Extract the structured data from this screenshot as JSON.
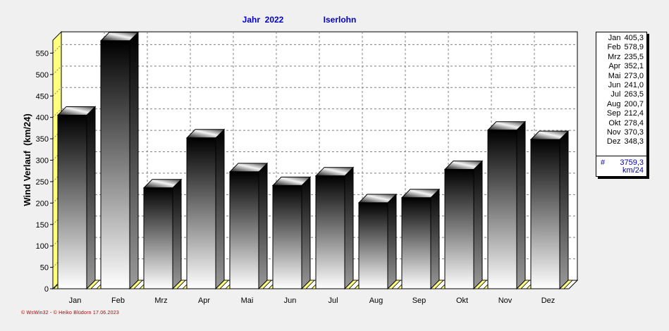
{
  "chart_data": {
    "type": "bar",
    "title_year": "Jahr  2022",
    "title_location": "Iserlohn",
    "ylabel": "Wind Verlauf  (km/24)",
    "ylim": [
      0,
      580
    ],
    "yticks": [
      0,
      50,
      100,
      150,
      200,
      250,
      300,
      350,
      400,
      450,
      500,
      550
    ],
    "grid": true,
    "categories": [
      "Jan",
      "Feb",
      "Mrz",
      "Apr",
      "Mai",
      "Jun",
      "Jul",
      "Aug",
      "Sep",
      "Okt",
      "Nov",
      "Dez"
    ],
    "values": [
      405.3,
      578.9,
      235.5,
      352.1,
      273.0,
      241.0,
      263.5,
      200.7,
      212.4,
      278.4,
      370.3,
      348.3
    ]
  },
  "legend": {
    "entries": [
      {
        "month": "Jan",
        "value": "405,3"
      },
      {
        "month": "Feb",
        "value": "578,9"
      },
      {
        "month": "Mrz",
        "value": "235,5"
      },
      {
        "month": "Apr",
        "value": "352,1"
      },
      {
        "month": "Mai",
        "value": "273,0"
      },
      {
        "month": "Jun",
        "value": "241,0"
      },
      {
        "month": "Jul",
        "value": "263,5"
      },
      {
        "month": "Aug",
        "value": "200,7"
      },
      {
        "month": "Sep",
        "value": "212,4"
      },
      {
        "month": "Okt",
        "value": "278,4"
      },
      {
        "month": "Nov",
        "value": "370,3"
      },
      {
        "month": "Dez",
        "value": "348,3"
      }
    ],
    "sum_symbol": "#",
    "sum_value": "3759,3",
    "sum_unit": "km/24"
  },
  "footer": "© WsWin32  -  © Heiko Blüdorn  17.06.2023",
  "colors": {
    "title": "#0000c8",
    "floor": "#ffff80",
    "wall_side": "#ffff80",
    "bar_top": "#000000",
    "bar_bottom": "#ffffff"
  }
}
